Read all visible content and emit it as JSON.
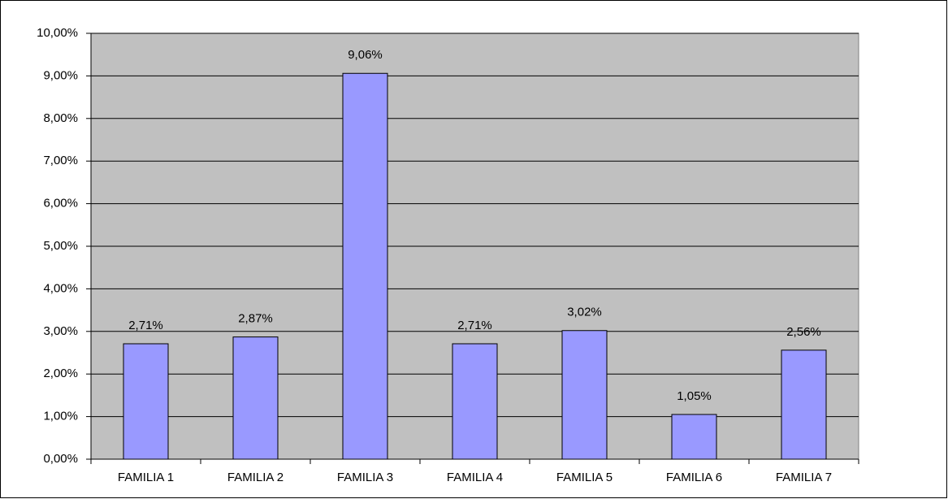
{
  "chart_data": {
    "type": "bar",
    "categories": [
      "FAMILIA 1",
      "FAMILIA 2",
      "FAMILIA 3",
      "FAMILIA 4",
      "FAMILIA 5",
      "FAMILIA 6",
      "FAMILIA 7"
    ],
    "values": [
      2.71,
      2.87,
      9.06,
      2.71,
      3.02,
      1.05,
      2.56
    ],
    "value_labels": [
      "2,71%",
      "2,87%",
      "9,06%",
      "2,71%",
      "3,02%",
      "1,05%",
      "2,56%"
    ],
    "color": "#9999ff",
    "ylim": [
      0,
      10
    ],
    "yticks": [
      {
        "value": 0,
        "label": "0,00%"
      },
      {
        "value": 1,
        "label": "1,00%"
      },
      {
        "value": 2,
        "label": "2,00%"
      },
      {
        "value": 3,
        "label": "3,00%"
      },
      {
        "value": 4,
        "label": "4,00%"
      },
      {
        "value": 5,
        "label": "5,00%"
      },
      {
        "value": 6,
        "label": "6,00%"
      },
      {
        "value": 7,
        "label": "7,00%"
      },
      {
        "value": 8,
        "label": "8,00%"
      },
      {
        "value": 9,
        "label": "9,00%"
      },
      {
        "value": 10,
        "label": "10,00%"
      }
    ],
    "grid": true
  }
}
